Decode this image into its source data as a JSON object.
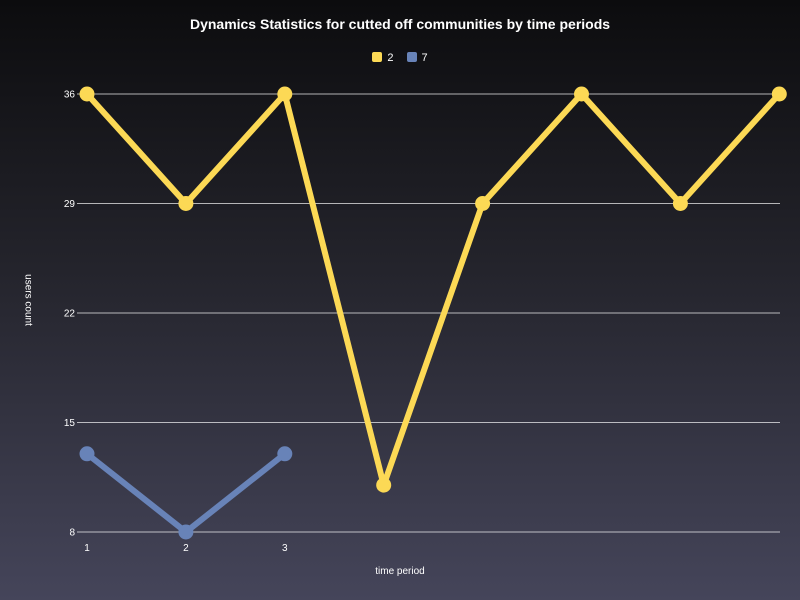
{
  "chart_data": {
    "type": "line",
    "title": "Dynamics Statistics for cutted off communities by time periods",
    "xlabel": "time period",
    "ylabel": "users count",
    "ylim": [
      8,
      36
    ],
    "y_ticks": [
      8,
      15,
      22,
      29,
      36
    ],
    "x_tick_labels": [
      "1",
      "2",
      "3"
    ],
    "grid": true,
    "legend_position": "top-center",
    "series": [
      {
        "name": "2",
        "color": "#fcd955",
        "x": [
          1,
          2,
          3,
          4,
          5,
          6,
          7,
          8
        ],
        "values": [
          36,
          29,
          36,
          11,
          29,
          36,
          29,
          36
        ]
      },
      {
        "name": "7",
        "color": "#6883b8",
        "x": [
          1,
          2,
          3
        ],
        "values": [
          13,
          8,
          13
        ]
      }
    ]
  }
}
